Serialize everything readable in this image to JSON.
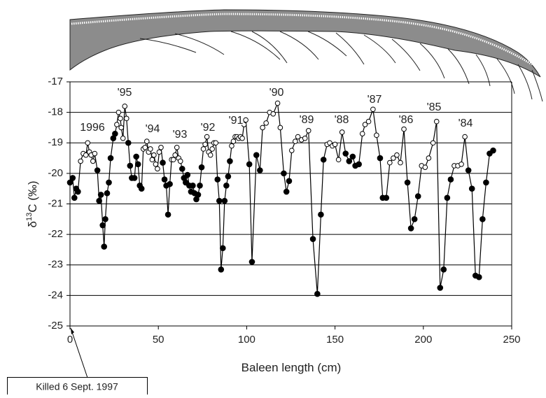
{
  "chart_data": {
    "type": "line",
    "xlabel": "Baleen length (cm)",
    "ylabel": {
      "prefix": "δ",
      "sup": "13",
      "suffix": "C (‰)"
    },
    "xlim": [
      0,
      250
    ],
    "xticks": [
      0,
      50,
      100,
      150,
      200,
      250
    ],
    "ylim": [
      -25,
      -17
    ],
    "yticks": [
      -25,
      -24,
      -23,
      -22,
      -21,
      -20,
      -19,
      -18,
      -17
    ],
    "grid": true,
    "color": "#000000",
    "x": [
      0,
      1.5,
      2.5,
      3.5,
      4.5,
      6,
      7.5,
      9,
      10,
      11,
      12,
      13,
      14,
      15.5,
      16.5,
      17.5,
      18.5,
      19.3,
      20,
      21,
      22,
      23,
      24.5,
      25.5,
      26.5,
      27.5,
      28.5,
      29,
      30,
      31,
      32,
      33,
      34,
      35,
      36.5,
      37.5,
      38.5,
      39.5,
      40.5,
      41.5,
      42.5,
      43.5,
      44.5,
      45.5,
      46.5,
      47.5,
      48.5,
      49.5,
      50.5,
      51.5,
      52.5,
      53.5,
      54.5,
      55.5,
      56.5,
      57.5,
      58.5,
      59.5,
      60.5,
      61.5,
      62.5,
      63.5,
      64.5,
      65.5,
      66.5,
      67.5,
      68.5,
      69.5,
      70.5,
      71.5,
      72.5,
      73.5,
      74.5,
      75.5,
      76.5,
      77.5,
      78.5,
      79.5,
      80.5,
      81.5,
      82.5,
      83.5,
      84.5,
      85.5,
      86.5,
      87.5,
      88.5,
      89.5,
      90.5,
      91.5,
      92.5,
      93.5,
      94.5,
      95.5,
      96.5,
      97.5,
      98.5,
      99.5,
      101.5,
      103,
      105.5,
      107.5,
      109,
      111,
      113,
      115,
      117.5,
      119,
      121,
      122.5,
      124,
      125.5,
      127.5,
      129,
      131,
      133,
      135,
      137.5,
      140,
      142,
      143.5,
      145.5,
      147,
      148.5,
      150,
      152,
      154,
      156,
      158,
      160,
      161.5,
      163.5,
      165.5,
      167,
      169,
      171.5,
      173.5,
      175.5,
      177,
      179,
      181,
      183,
      185,
      187,
      189,
      191,
      193,
      195,
      197,
      199,
      201,
      203,
      205.5,
      207.5,
      209.5,
      211.5,
      213.5,
      215.5,
      217.5,
      219.5,
      221.5,
      223.5,
      225.5,
      227.5,
      229.5,
      231.5,
      233.5,
      235.5,
      237.5,
      239.5
    ],
    "values": [
      -20.3,
      -20.15,
      -20.8,
      -20.5,
      -20.6,
      -19.6,
      -19.35,
      -19.4,
      -19,
      -19.3,
      -19.4,
      -19.6,
      -19.35,
      -19.9,
      -20.9,
      -20.7,
      -21.7,
      -22.4,
      -21.5,
      -20.65,
      -20.3,
      -19.5,
      -18.85,
      -18.7,
      -18.4,
      -18,
      -18.2,
      -18.5,
      -18.85,
      -17.8,
      -18.2,
      -19,
      -19.75,
      -20.15,
      -20.15,
      -19.45,
      -19.7,
      -20.4,
      -20.5,
      -19.2,
      -19.15,
      -18.95,
      -19.3,
      -19.2,
      -19.55,
      -19.4,
      -19.7,
      -19.85,
      -19.3,
      -19.15,
      -19.65,
      -20.2,
      -20.4,
      -21.35,
      -20.35,
      -19.55,
      -19.55,
      -19.4,
      -19.15,
      -19.5,
      -19.6,
      -19.85,
      -20.15,
      -20.3,
      -20.05,
      -20.4,
      -20.6,
      -20.4,
      -20.65,
      -20.85,
      -20.7,
      -20.4,
      -19.8,
      -19.2,
      -19.05,
      -18.8,
      -19.3,
      -19.4,
      -19.2,
      -19,
      -19,
      -20.2,
      -20.9,
      -23.15,
      -22.45,
      -20.9,
      -20.4,
      -20.1,
      -19.6,
      -19.1,
      -18.95,
      -18.8,
      -18.8,
      -18.85,
      -18.8,
      -18.85,
      -18.4,
      -18.25,
      -19.7,
      -22.9,
      -19.4,
      -19.9,
      -18.5,
      -18.35,
      -18,
      -18.05,
      -17.7,
      -18.5,
      -20,
      -20.6,
      -20.25,
      -19.25,
      -18.95,
      -18.8,
      -18.9,
      -18.85,
      -18.6,
      -22.15,
      -23.95,
      -21.35,
      -19.55,
      -19.05,
      -19,
      -19.1,
      -19.05,
      -19.55,
      -18.65,
      -19.35,
      -19.6,
      -19.45,
      -19.75,
      -19.7,
      -18.7,
      -18.4,
      -18.3,
      -17.9,
      -18.75,
      -19.5,
      -20.8,
      -20.8,
      -19.65,
      -19.5,
      -19.4,
      -19.65,
      -18.55,
      -20.3,
      -21.8,
      -21.5,
      -20.75,
      -19.75,
      -19.8,
      -19.5,
      -19,
      -18.3,
      -23.75,
      -23.15,
      -20.8,
      -20.2,
      -19.75,
      -19.75,
      -19.7,
      -18.8,
      -19.9,
      -20.5,
      -23.35,
      -23.4,
      -21.5,
      -20.3,
      -19.35,
      -19.25
    ],
    "markers": [
      "filled",
      "filled",
      "filled",
      "filled",
      "filled",
      "open",
      "open",
      "open",
      "open",
      "open",
      "open",
      "open",
      "open",
      "filled",
      "filled",
      "filled",
      "filled",
      "filled",
      "filled",
      "filled",
      "filled",
      "filled",
      "filled",
      "filled",
      "open",
      "open",
      "open",
      "open",
      "open",
      "open",
      "open",
      "filled",
      "filled",
      "filled",
      "filled",
      "filled",
      "filled",
      "filled",
      "filled",
      "open",
      "open",
      "open",
      "open",
      "open",
      "open",
      "open",
      "open",
      "open",
      "open",
      "open",
      "filled",
      "filled",
      "filled",
      "filled",
      "filled",
      "open",
      "open",
      "open",
      "open",
      "open",
      "open",
      "filled",
      "filled",
      "filled",
      "filled",
      "filled",
      "filled",
      "filled",
      "filled",
      "filled",
      "filled",
      "filled",
      "filled",
      "open",
      "open",
      "open",
      "open",
      "open",
      "open",
      "open",
      "open",
      "filled",
      "filled",
      "filled",
      "filled",
      "filled",
      "filled",
      "filled",
      "filled",
      "open",
      "open",
      "open",
      "open",
      "open",
      "open",
      "open",
      "open",
      "open",
      "filled",
      "filled",
      "filled",
      "filled",
      "open",
      "open",
      "open",
      "open",
      "open",
      "open",
      "filled",
      "filled",
      "filled",
      "open",
      "open",
      "open",
      "open",
      "open",
      "open",
      "filled",
      "filled",
      "filled",
      "filled",
      "open",
      "open",
      "open",
      "open",
      "open",
      "open",
      "filled",
      "filled",
      "filled",
      "filled",
      "filled",
      "open",
      "open",
      "open",
      "open",
      "open",
      "filled",
      "filled",
      "filled",
      "open",
      "open",
      "open",
      "open",
      "open",
      "filled",
      "filled",
      "filled",
      "filled",
      "open",
      "open",
      "open",
      "open",
      "open",
      "filled",
      "filled",
      "filled",
      "filled",
      "open",
      "open",
      "open",
      "open",
      "filled",
      "filled",
      "filled",
      "filled",
      "filled",
      "filled",
      "filled",
      "filled"
    ],
    "annotations": [
      "1996",
      "'95",
      "'94",
      "'93",
      "'92",
      "'91",
      "'90",
      "'89",
      "'88",
      "'87",
      "'86",
      "'85",
      "'84"
    ],
    "note": "Killed 6 Sept. 1997"
  }
}
